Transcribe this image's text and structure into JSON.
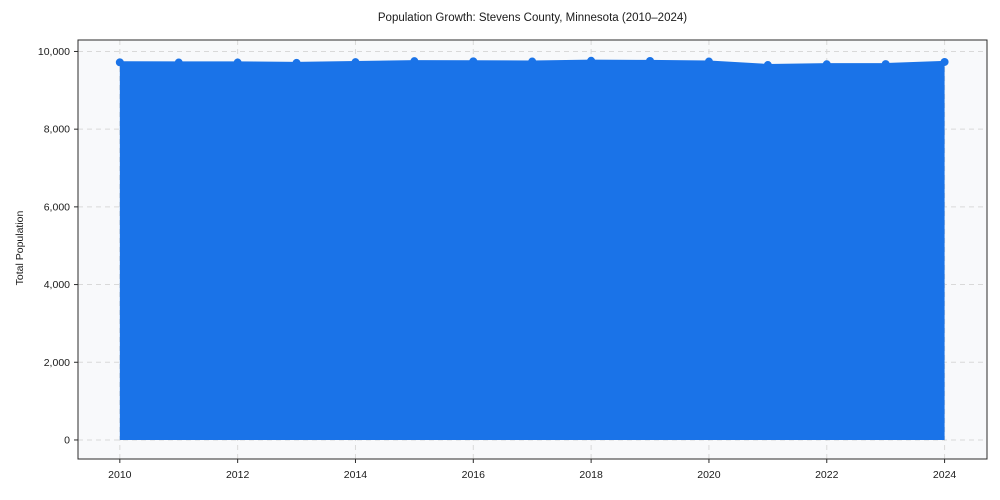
{
  "figure": {
    "title": "Population Growth: Stevens County, Minnesota (2010–2024)",
    "ylabel": "Total Population"
  },
  "chart_data": {
    "type": "area",
    "title": "Population Growth: Stevens County, Minnesota (2010–2024)",
    "xlabel": "",
    "ylabel": "Total Population",
    "x": [
      2010,
      2011,
      2012,
      2013,
      2014,
      2015,
      2016,
      2017,
      2018,
      2019,
      2020,
      2021,
      2022,
      2023,
      2024
    ],
    "series": [
      {
        "name": "Total Population",
        "values": [
          9720,
          9715,
          9715,
          9705,
          9725,
          9750,
          9745,
          9740,
          9760,
          9755,
          9740,
          9650,
          9670,
          9675,
          9730
        ]
      }
    ],
    "x_tick_labels": [
      "2010",
      "2012",
      "2014",
      "2016",
      "2018",
      "2020",
      "2022",
      "2024"
    ],
    "x_ticks": [
      2010,
      2012,
      2014,
      2016,
      2018,
      2020,
      2022,
      2024
    ],
    "y_ticks": [
      0,
      2000,
      4000,
      6000,
      8000,
      10000
    ],
    "y_tick_labels": [
      "0",
      "2,000",
      "4,000",
      "6,000",
      "8,000",
      "10,000"
    ],
    "xlim": [
      2009.29,
      2024.72
    ],
    "ylim": [
      -490,
      10295
    ],
    "grid": true,
    "grid_style": "dashed",
    "legend": "none",
    "colors": {
      "line": "#1a73e8",
      "marker": "#1a73e8",
      "fill": "#1a73e8",
      "fill_opacity": 0.13,
      "grid": "#d9d9d9",
      "plot_background": "#f8f9fb",
      "figure_background": "#ffffff",
      "axis_border": "#2b2b2b",
      "tick_text": "#1a1a1a"
    },
    "marker_style": "circle",
    "baseline": 0
  }
}
